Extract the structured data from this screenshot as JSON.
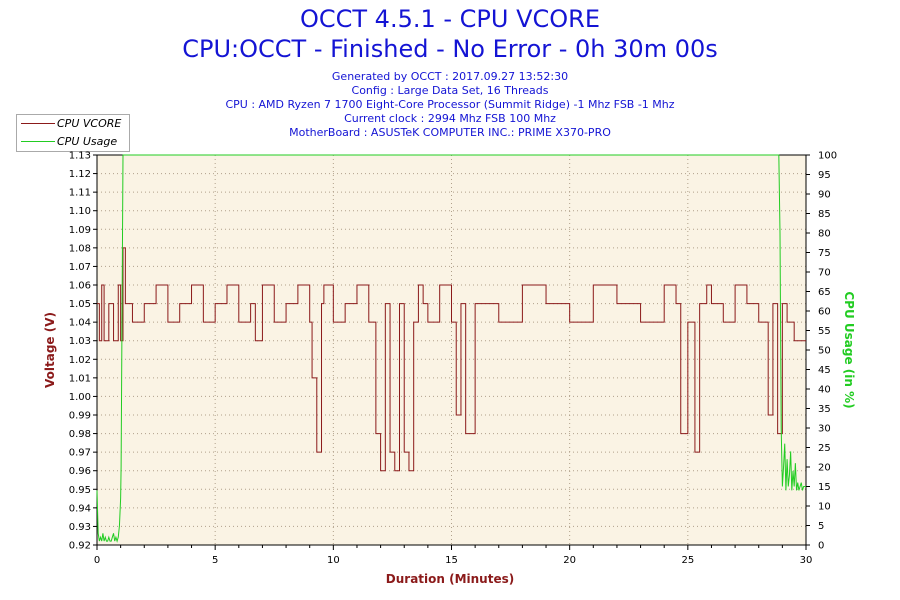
{
  "header": {
    "title": "OCCT 4.5.1 - CPU VCORE",
    "subtitle": "CPU:OCCT - Finished - No Error - 0h 30m 00s",
    "info_lines": [
      "Generated by OCCT : 2017.09.27 13:52:30",
      "Config : Large Data Set, 16 Threads",
      "CPU : AMD Ryzen 7 1700 Eight-Core Processor (Summit Ridge) -1 Mhz FSB -1 Mhz",
      "Current clock : 2994 Mhz FSB 100 Mhz",
      "MotherBoard : ASUSTeK COMPUTER INC.: PRIME X370-PRO"
    ]
  },
  "colors": {
    "vcore": "#8b1a1a",
    "usage": "#22cc22",
    "plot_bg": "#faf3e4",
    "axis": "#000000",
    "grid": "#b0a08a"
  },
  "legend": {
    "vcore_label": "CPU VCORE",
    "usage_label": "CPU Usage"
  },
  "chart_data": {
    "type": "line",
    "title": "OCCT 4.5.1 - CPU VCORE",
    "xlabel": "Duration (Minutes)",
    "ylabel_left": "Voltage (V)",
    "ylabel_right": "CPU Usage (in %)",
    "xlim": [
      0,
      30
    ],
    "ylim_left": [
      0.92,
      1.13
    ],
    "ylim_right": [
      0,
      100
    ],
    "x_ticks": [
      "0",
      "5",
      "10",
      "15",
      "20",
      "25",
      "30"
    ],
    "y_left_ticks": [
      "0.92",
      "0.93",
      "0.94",
      "0.95",
      "0.96",
      "0.97",
      "0.98",
      "0.99",
      "1.00",
      "1.01",
      "1.02",
      "1.03",
      "1.04",
      "1.05",
      "1.06",
      "1.07",
      "1.08",
      "1.09",
      "1.10",
      "1.11",
      "1.12",
      "1.13"
    ],
    "y_right_ticks": [
      "0",
      "5",
      "10",
      "15",
      "20",
      "25",
      "30",
      "35",
      "40",
      "45",
      "50",
      "55",
      "60",
      "65",
      "70",
      "75",
      "80",
      "85",
      "90",
      "95",
      "100"
    ],
    "grid": true,
    "legend_position": "top-left",
    "series": [
      {
        "name": "CPU VCORE",
        "axis": "left",
        "x": [
          0.0,
          0.1,
          0.2,
          0.3,
          0.5,
          0.7,
          0.9,
          1.0,
          1.1,
          1.2,
          1.5,
          2.0,
          2.5,
          3.0,
          3.5,
          4.0,
          4.5,
          5.0,
          5.5,
          6.0,
          6.5,
          6.7,
          7.0,
          7.5,
          8.0,
          8.5,
          9.0,
          9.1,
          9.3,
          9.5,
          9.6,
          10.0,
          10.5,
          11.0,
          11.5,
          11.8,
          12.0,
          12.2,
          12.4,
          12.6,
          12.8,
          13.0,
          13.2,
          13.4,
          13.6,
          13.8,
          14.0,
          14.5,
          15.0,
          15.2,
          15.4,
          15.6,
          16.0,
          17.0,
          18.0,
          19.0,
          20.0,
          21.0,
          22.0,
          23.0,
          24.0,
          24.5,
          24.7,
          25.0,
          25.3,
          25.5,
          25.8,
          26.0,
          26.5,
          27.0,
          27.5,
          28.0,
          28.4,
          28.6,
          28.8,
          29.0,
          29.2,
          29.5,
          30.0
        ],
        "values": [
          1.05,
          1.03,
          1.06,
          1.03,
          1.05,
          1.03,
          1.06,
          1.03,
          1.08,
          1.05,
          1.04,
          1.05,
          1.06,
          1.04,
          1.05,
          1.06,
          1.04,
          1.05,
          1.06,
          1.04,
          1.05,
          1.03,
          1.06,
          1.04,
          1.05,
          1.06,
          1.04,
          1.01,
          0.97,
          1.05,
          1.06,
          1.04,
          1.05,
          1.06,
          1.04,
          0.98,
          0.96,
          1.05,
          0.97,
          0.96,
          1.05,
          0.97,
          0.96,
          1.04,
          1.06,
          1.05,
          1.04,
          1.06,
          1.04,
          0.99,
          1.05,
          0.98,
          1.05,
          1.04,
          1.06,
          1.05,
          1.04,
          1.06,
          1.05,
          1.04,
          1.06,
          1.05,
          0.98,
          1.04,
          0.97,
          1.05,
          1.06,
          1.05,
          1.04,
          1.06,
          1.05,
          1.04,
          0.99,
          1.05,
          0.98,
          1.05,
          1.04,
          1.03,
          1.03
        ]
      },
      {
        "name": "CPU Usage",
        "axis": "right",
        "x": [
          0.0,
          0.05,
          0.1,
          0.15,
          0.2,
          0.25,
          0.3,
          0.35,
          0.4,
          0.45,
          0.5,
          0.55,
          0.6,
          0.65,
          0.7,
          0.75,
          0.8,
          0.85,
          0.9,
          0.95,
          1.0,
          1.02,
          1.05,
          1.1,
          1.15,
          1.2,
          28.85,
          28.9,
          28.95,
          29.0,
          29.05,
          29.1,
          29.15,
          29.2,
          29.25,
          29.3,
          29.35,
          29.4,
          29.45,
          29.5,
          29.55,
          29.6,
          29.65,
          29.7,
          29.75,
          29.8,
          29.85,
          29.9,
          29.95,
          30.0
        ],
        "values": [
          14,
          3,
          1,
          2,
          1,
          3,
          1,
          2,
          1,
          1,
          2,
          1,
          1,
          2,
          3,
          1,
          2,
          1,
          2,
          5,
          12,
          20,
          50,
          100,
          100,
          100,
          100,
          80,
          30,
          15,
          20,
          26,
          14,
          22,
          15,
          18,
          24,
          14,
          19,
          15,
          21,
          14,
          16,
          14,
          15,
          16,
          14,
          15,
          15,
          15
        ]
      }
    ]
  }
}
